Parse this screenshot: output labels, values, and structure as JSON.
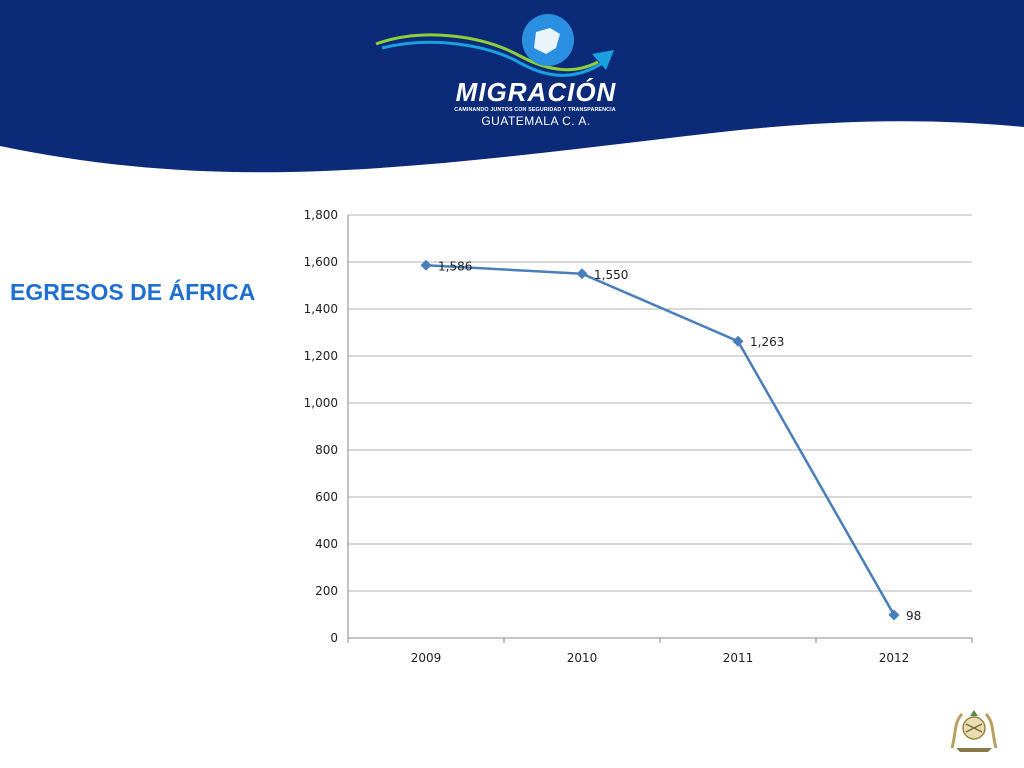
{
  "slide": {
    "title": "EGRESOS DE ÁFRICA"
  },
  "logo": {
    "name": "MIGRACIÓN",
    "tagline": "CAMINANDO JUNTOS CON SEGURIDAD Y TRANSPARENCIA",
    "country": "GUATEMALA C. A."
  },
  "colors": {
    "header": "#0b2a78",
    "title": "#1f6fd0",
    "series": "#4a7ebb",
    "grid": "#b3b3b3"
  },
  "icons": [
    "guatemala-map-emblem",
    "coat-of-arms-icon"
  ],
  "chart_data": {
    "type": "line",
    "categories": [
      "2009",
      "2010",
      "2011",
      "2012"
    ],
    "series": [
      {
        "values": [
          1586,
          1550,
          1263,
          98
        ]
      }
    ],
    "data_labels": [
      "1,586",
      "1,550",
      "1,263",
      "98"
    ],
    "y_ticks": [
      "0",
      "200",
      "400",
      "600",
      "800",
      "1,000",
      "1,200",
      "1,400",
      "1,600",
      "1,800"
    ],
    "ylim": [
      0,
      1800
    ],
    "title": "",
    "xlabel": "",
    "ylabel": "",
    "grid": true,
    "marker": "diamond",
    "legend": "none"
  }
}
